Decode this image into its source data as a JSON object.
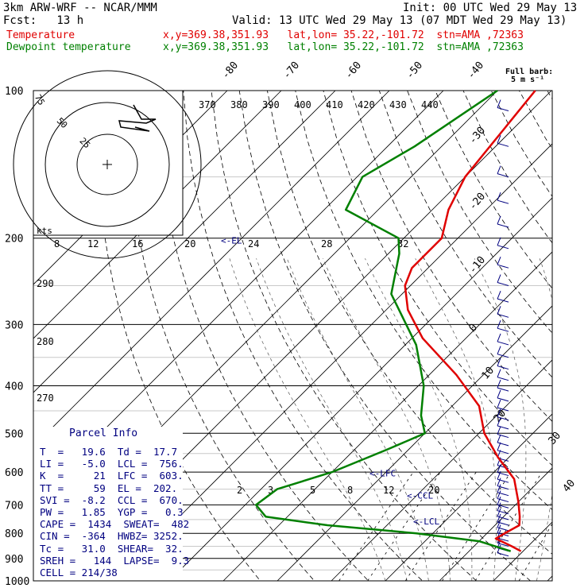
{
  "header": {
    "title": "3km ARW-WRF -- NCAR/MMM",
    "init": "Init: 00 UTC Wed 29 May 13",
    "fcst": "Fcst:   13 h",
    "valid": "Valid: 13 UTC Wed 29 May 13 (07 MDT Wed 29 May 13)",
    "temp_label": "Temperature",
    "temp_loc": "x,y=369.38,351.93   lat,lon= 35.22,-101.72  stn=AMA ,72363",
    "dew_label": "Dewpoint temperature",
    "dew_loc": "x,y=369.38,351.93   lat,lon= 35.22,-101.72  stn=AMA ,72363"
  },
  "colors": {
    "temperature": "#e00000",
    "dewpoint": "#008000",
    "wind": "#000080",
    "grid": "#000000"
  },
  "chart_data": {
    "type": "line",
    "pressure_ticks": [
      "100",
      "200",
      "300",
      "400",
      "500",
      "600",
      "700",
      "800",
      "900",
      "1000"
    ],
    "temperature_isotherm_labels": [
      "-80",
      "-70",
      "-60",
      "-50",
      "-40",
      "-30",
      "-20",
      "-10",
      "0",
      "10",
      "20",
      "30",
      "40"
    ],
    "theta_labels": [
      "370",
      "380",
      "390",
      "400",
      "410",
      "420",
      "430",
      "440"
    ],
    "mixing_ratio_labels": [
      "2",
      "3",
      "5",
      "8",
      "12",
      "20"
    ],
    "inset_axis_labels": [
      "8",
      "12",
      "16",
      "20",
      "24",
      "28",
      "32"
    ],
    "inset_temp_labels": [
      "290",
      "280",
      "270"
    ],
    "hodograph_rings": [
      "75",
      "50",
      "25"
    ],
    "hodograph_unit": "kts",
    "wind_legend": {
      "line1": "Full barb:",
      "line2": "5 m s⁻¹"
    },
    "level_markers": [
      {
        "label": "EL",
        "pressure": 202
      },
      {
        "label": "LFC",
        "pressure": 603
      },
      {
        "label": "CCL",
        "pressure": 670
      },
      {
        "label": "LCL",
        "pressure": 756
      }
    ],
    "series": [
      {
        "name": "Temperature",
        "pressure": [
          100,
          150,
          175,
          200,
          230,
          250,
          280,
          320,
          380,
          440,
          500,
          560,
          620,
          690,
          740,
          770,
          800,
          820,
          850,
          870
        ],
        "temp": [
          -63,
          -60,
          -57,
          -53,
          -53,
          -51,
          -46,
          -38,
          -25,
          -15,
          -9,
          -2,
          5,
          10,
          13,
          14.5,
          13.3,
          12.6,
          17,
          19.6
        ]
      },
      {
        "name": "Dewpoint temperature",
        "pressure": [
          100,
          130,
          150,
          175,
          200,
          215,
          260,
          330,
          400,
          460,
          500,
          540,
          600,
          650,
          700,
          740,
          770,
          800,
          830,
          870
        ],
        "temp": [
          -70,
          -75,
          -79,
          -76,
          -61,
          -58,
          -52,
          -38,
          -29,
          -24,
          -20,
          -24,
          -30,
          -37,
          -38,
          -34,
          -21,
          -3,
          10,
          17.7
        ]
      }
    ]
  },
  "parcel_info": {
    "title": "Parcel Info",
    "rows": [
      "T  =   19.6  Td =  17.7",
      "LI =   -5.0  LCL =  756.",
      "K  =     21  LFC =  603.",
      "TT =     59  EL =  202.",
      "SVI =  -8.2  CCL =  670.",
      "PW =   1.85  YGP =   0.3",
      "CAPE =  1434  SWEAT=  482",
      "CIN =  -364  HWBZ= 3252.",
      "Tc =   31.0  SHEAR=  32.",
      "SREH =   144  LAPSE=  9.3",
      "CELL = 214/38"
    ]
  }
}
